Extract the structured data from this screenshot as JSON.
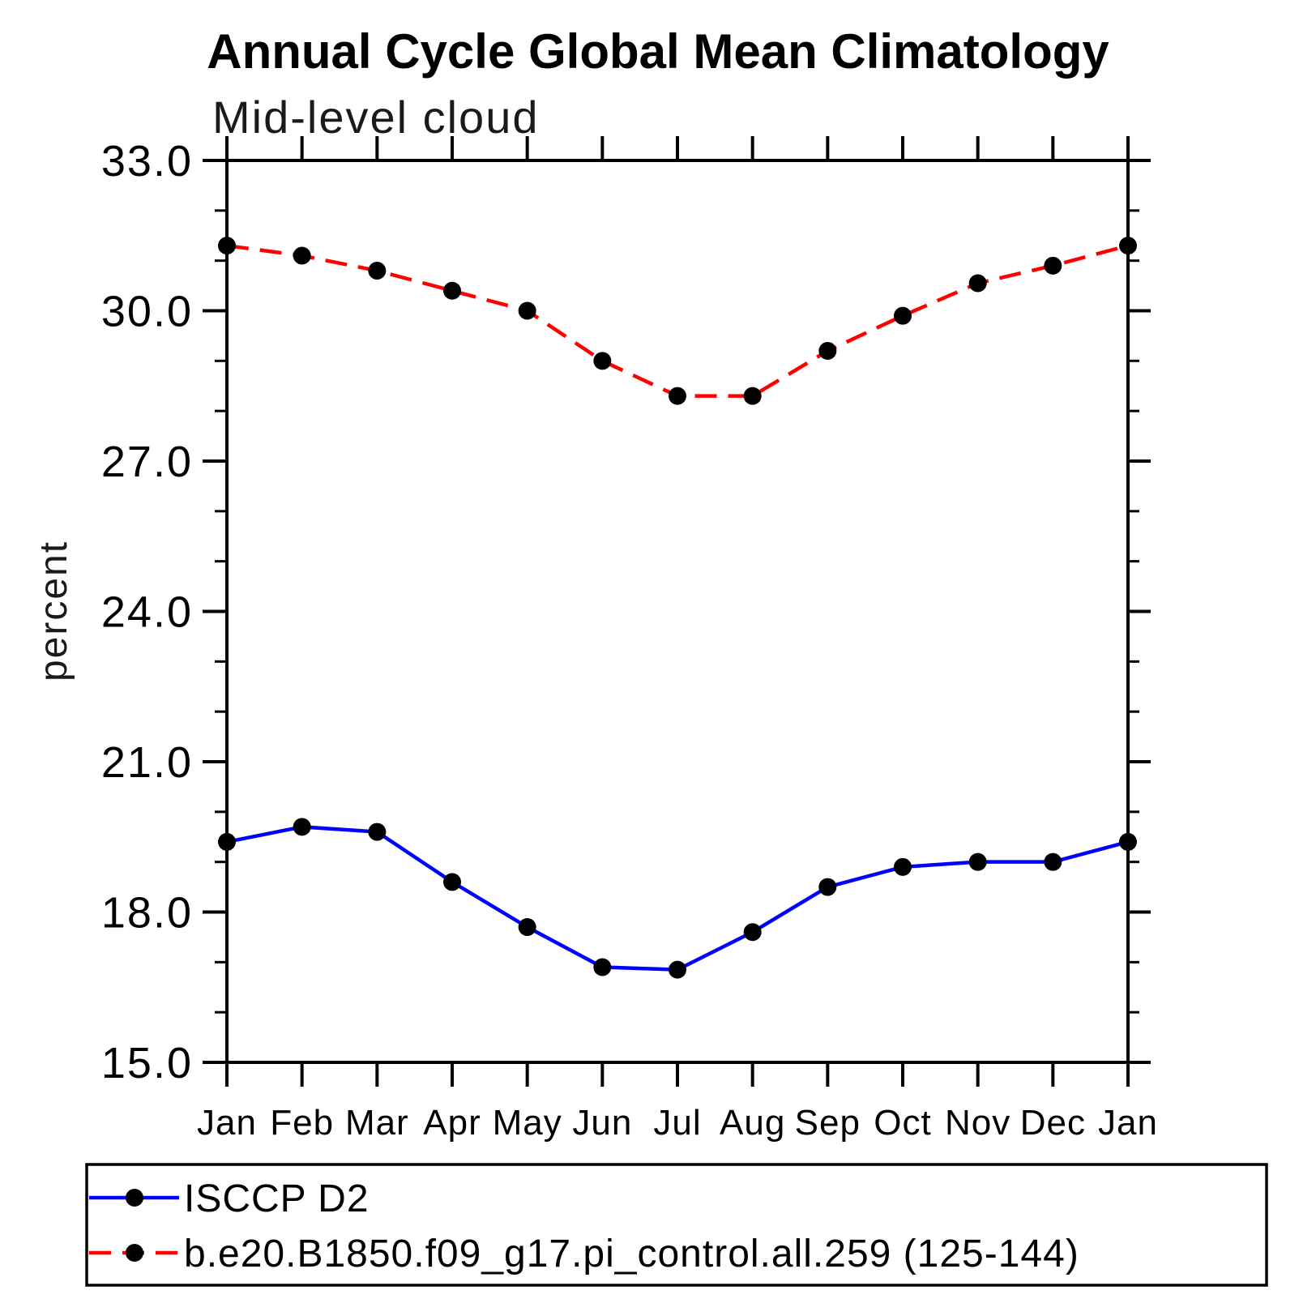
{
  "title": "Annual Cycle Global Mean Climatology",
  "subtitle": "Mid-level cloud",
  "y_axis_label": "percent",
  "chart_data": {
    "type": "line",
    "categories": [
      "Jan",
      "Feb",
      "Mar",
      "Apr",
      "May",
      "Jun",
      "Jul",
      "Aug",
      "Sep",
      "Oct",
      "Nov",
      "Dec",
      "Jan"
    ],
    "series": [
      {
        "name": "ISCCP D2",
        "line_color": "#0000ff",
        "line_style": "solid",
        "marker": "filled-circle",
        "marker_color": "#000000",
        "values": [
          19.4,
          19.7,
          19.6,
          18.6,
          17.7,
          16.9,
          16.85,
          17.6,
          18.5,
          18.9,
          19.0,
          19.0,
          19.4
        ]
      },
      {
        "name": "b.e20.B1850.f09_g17.pi_control.all.259 (125-144)",
        "line_color": "#ff0000",
        "line_style": "dashed",
        "marker": "filled-circle",
        "marker_color": "#000000",
        "values": [
          31.3,
          31.1,
          30.8,
          30.4,
          30.0,
          29.0,
          28.3,
          28.3,
          29.2,
          29.9,
          30.55,
          30.9,
          31.3
        ]
      }
    ],
    "xlabel": "",
    "ylabel": "percent",
    "ylim": [
      15.0,
      33.0
    ],
    "ytick_values": [
      15,
      18,
      21,
      24,
      27,
      30,
      33
    ],
    "ytick_labels": [
      "15.0",
      "18.0",
      "21.0",
      "24.0",
      "27.0",
      "30.0",
      "33.0"
    ],
    "ytick_minor_interval": 1,
    "grid": false,
    "legend_position": "bottom-left-box",
    "frame_color": "#000000"
  }
}
